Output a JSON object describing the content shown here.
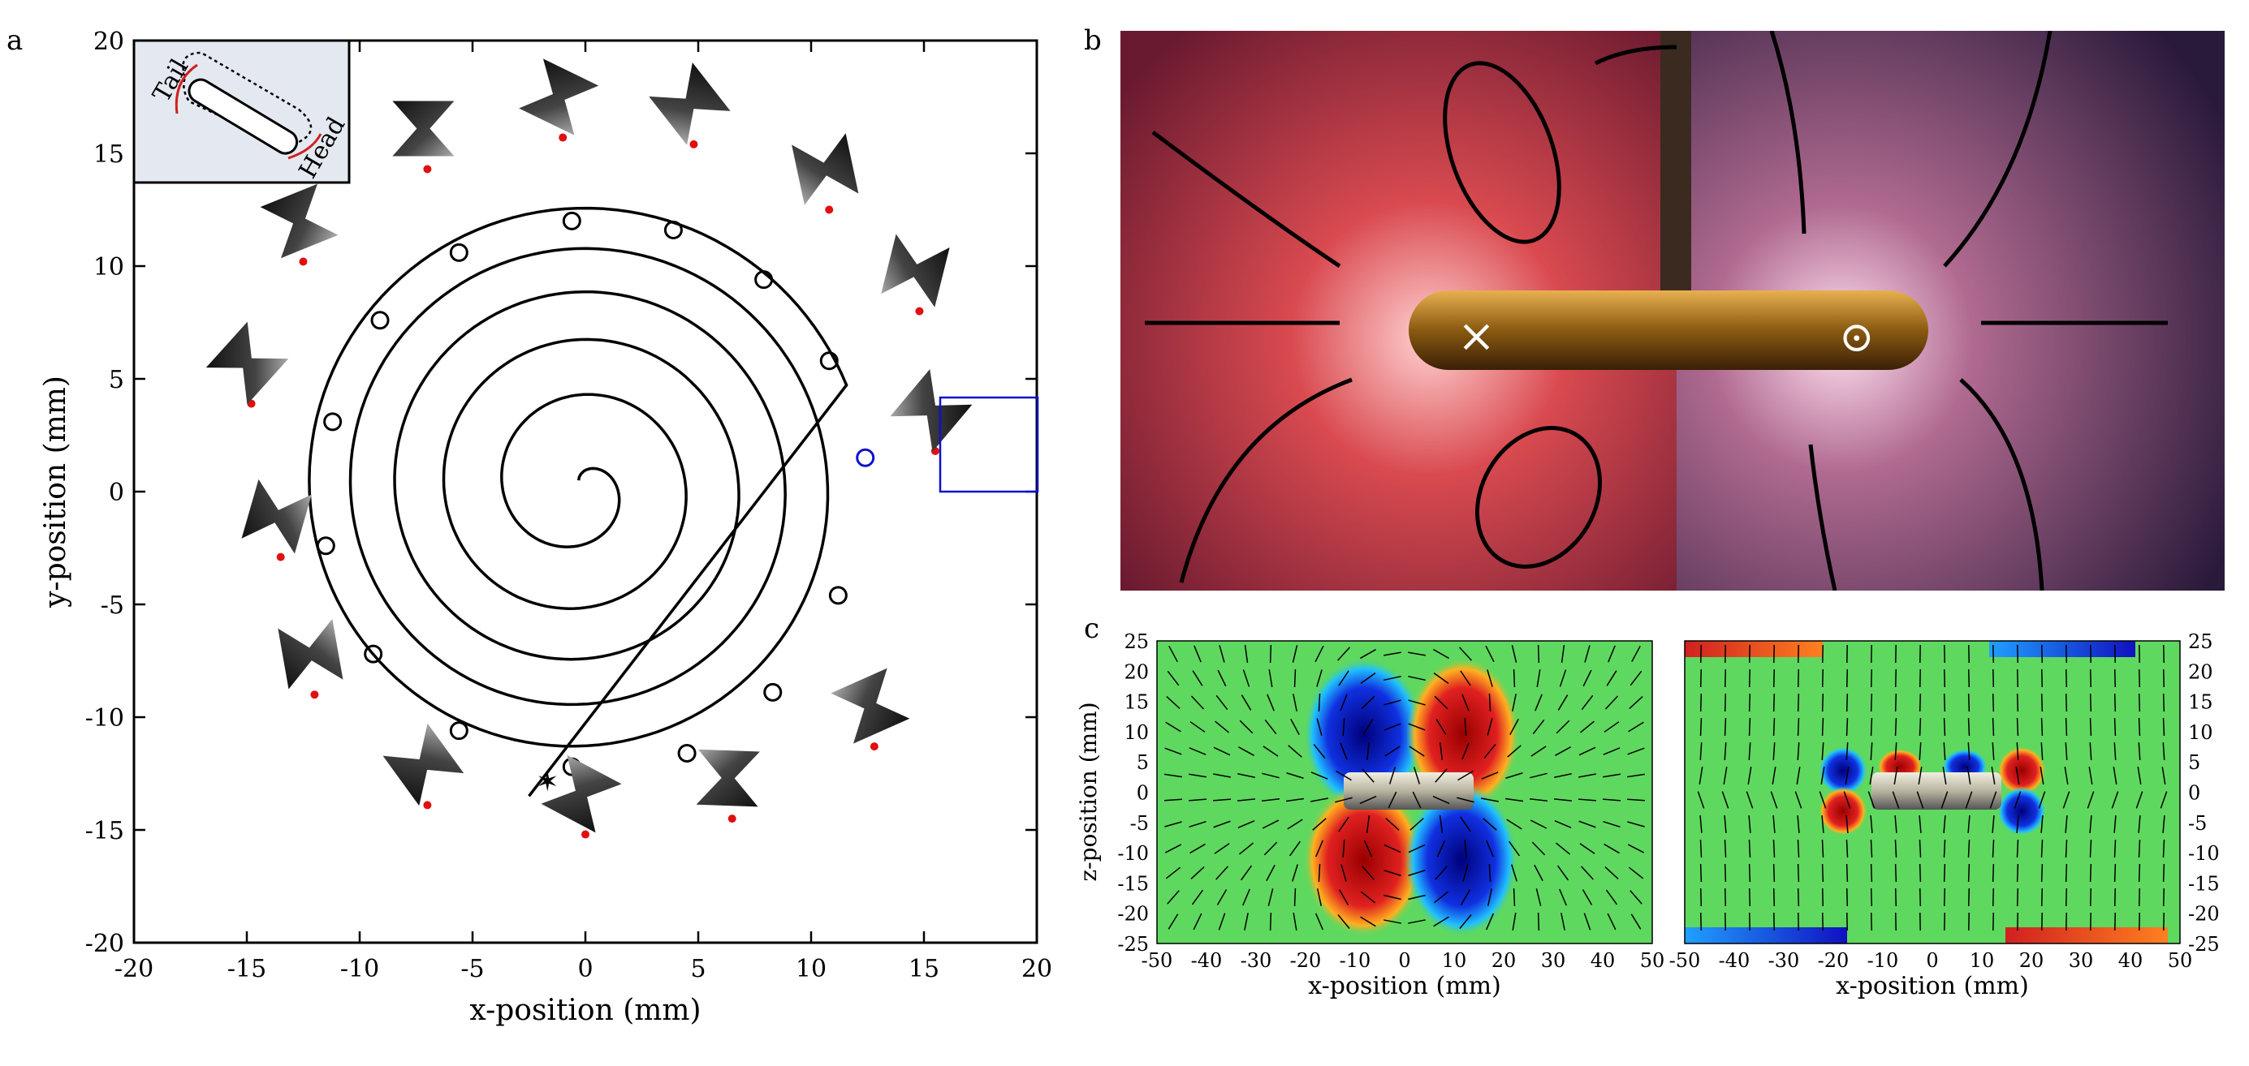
{
  "panel_labels": {
    "a": "a",
    "b": "b",
    "c": "c"
  },
  "panel_a": {
    "xlabel": "x-position (mm)",
    "ylabel": "y-position (mm)",
    "xticks": [
      "-20",
      "-15",
      "-10",
      "-5",
      "0",
      "5",
      "10",
      "15",
      "20"
    ],
    "yticks": [
      "-20",
      "-15",
      "-10",
      "-5",
      "0",
      "5",
      "10",
      "15",
      "20"
    ],
    "inset": {
      "tail_label": "Tail",
      "head_label": "Head"
    },
    "colors": {
      "trajectory": "#000000",
      "marker_red": "#e01010",
      "highlight_box": "#1010cc",
      "inset_bg": "#e4e8f0"
    }
  },
  "panel_b": {
    "colors": {
      "left_bg": "#b52a35",
      "right_bg": "#6a3a5a",
      "rod": "#b07b18"
    },
    "symbols": {
      "cross": "×",
      "dot": "⊙"
    }
  },
  "panel_c": {
    "xlabel": "x-position (mm)",
    "ylabel": "z-position (mm)",
    "xticks_left": [
      "-50",
      "-40",
      "-30",
      "-20",
      "-10",
      "0",
      "10",
      "20",
      "30",
      "40",
      "50"
    ],
    "xticks_right": [
      "-50",
      "-40",
      "-30",
      "-20",
      "-10",
      "0",
      "10",
      "20",
      "30",
      "40",
      "50"
    ],
    "yticks": [
      "25",
      "20",
      "15",
      "10",
      "5",
      "0",
      "-5",
      "-10",
      "-15",
      "-20",
      "-25"
    ],
    "colors": {
      "field": "#5fd85f",
      "positive": "#b01010",
      "negative": "#1010a0"
    }
  },
  "chart_data": [
    {
      "type": "line",
      "title": "",
      "xlabel": "x-position (mm)",
      "ylabel": "y-position (mm)",
      "xlim": [
        -20,
        20
      ],
      "ylim": [
        -20,
        20
      ],
      "series": [
        {
          "name": "spiral trajectory",
          "description": "inward spiral centred near (0,0) starting at (-2.5,-13.5)"
        },
        {
          "name": "circle markers (mm)",
          "x": [
            -0.6,
            3.9,
            7.9,
            10.8,
            12.4,
            11.2,
            8.3,
            4.5,
            -0.6,
            -5.6,
            -9.4,
            -11.5,
            -11.2,
            -9.1,
            -5.6
          ],
          "y": [
            12.0,
            11.6,
            9.4,
            5.8,
            1.5,
            -4.6,
            -8.9,
            -11.6,
            -12.2,
            -10.6,
            -7.2,
            -2.4,
            3.1,
            7.6,
            10.6
          ]
        }
      ],
      "red_markers_mm": {
        "x": [
          -7.0,
          -1.0,
          4.8,
          10.8,
          14.8,
          15.5,
          12.8,
          6.5,
          0.0,
          -7.0,
          -12.0,
          -13.5,
          -14.8,
          -12.5
        ],
        "y": [
          14.3,
          15.7,
          15.4,
          12.5,
          8.0,
          1.8,
          -11.3,
          -14.5,
          -15.2,
          -13.9,
          -9.0,
          -2.9,
          3.9,
          10.2
        ]
      }
    },
    {
      "type": "heatmap",
      "title": "",
      "xlabel": "x-position (mm)",
      "ylabel": "z-position (mm)",
      "xlim": [
        -50,
        50
      ],
      "ylim": [
        -25,
        25
      ]
    },
    {
      "type": "heatmap",
      "title": "",
      "xlabel": "x-position (mm)",
      "ylabel": "",
      "xlim": [
        -50,
        50
      ],
      "ylim": [
        -25,
        25
      ]
    }
  ]
}
